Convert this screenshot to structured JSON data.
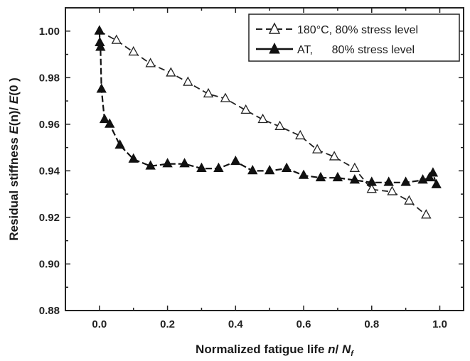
{
  "chart_data": {
    "type": "line",
    "xlabel": "Normalized fatigue life n/ N_f",
    "ylabel": "Residual stiffness E(n)/ E(0 )",
    "xlim": [
      -0.1,
      1.07
    ],
    "ylim": [
      0.88,
      1.01
    ],
    "xticks": [
      0.0,
      0.2,
      0.4,
      0.6,
      0.8,
      1.0
    ],
    "xtick_labels": [
      "0.0",
      "0.2",
      "0.4",
      "0.6",
      "0.8",
      "1.0"
    ],
    "yticks": [
      0.88,
      0.9,
      0.92,
      0.94,
      0.96,
      0.98,
      1.0
    ],
    "ytick_labels": [
      "0.88",
      "0.90",
      "0.92",
      "0.94",
      "0.96",
      "0.98",
      "1.00"
    ],
    "legend_position": "top-right",
    "grid": false,
    "series": [
      {
        "name": "180°C, 80% stress level",
        "marker": "open-triangle",
        "color": "#222222",
        "x": [
          0.0,
          0.05,
          0.1,
          0.15,
          0.21,
          0.26,
          0.32,
          0.37,
          0.43,
          0.48,
          0.53,
          0.59,
          0.64,
          0.69,
          0.75,
          0.8,
          0.86,
          0.91,
          0.96
        ],
        "y": [
          1.0,
          0.996,
          0.991,
          0.986,
          0.982,
          0.978,
          0.973,
          0.971,
          0.966,
          0.962,
          0.959,
          0.955,
          0.949,
          0.946,
          0.941,
          0.932,
          0.931,
          0.927,
          0.921
        ]
      },
      {
        "name": "AT,      80% stress level",
        "marker": "filled-triangle",
        "color": "#111111",
        "x": [
          0.0,
          0.001,
          0.003,
          0.006,
          0.015,
          0.03,
          0.06,
          0.1,
          0.15,
          0.2,
          0.25,
          0.3,
          0.35,
          0.4,
          0.45,
          0.5,
          0.55,
          0.6,
          0.65,
          0.7,
          0.75,
          0.8,
          0.85,
          0.9,
          0.95,
          0.97,
          0.98,
          0.99
        ],
        "y": [
          1.0,
          0.995,
          0.993,
          0.975,
          0.962,
          0.96,
          0.951,
          0.945,
          0.942,
          0.943,
          0.943,
          0.941,
          0.941,
          0.944,
          0.94,
          0.94,
          0.941,
          0.938,
          0.937,
          0.937,
          0.936,
          0.935,
          0.935,
          0.935,
          0.936,
          0.937,
          0.939,
          0.934
        ]
      }
    ]
  }
}
